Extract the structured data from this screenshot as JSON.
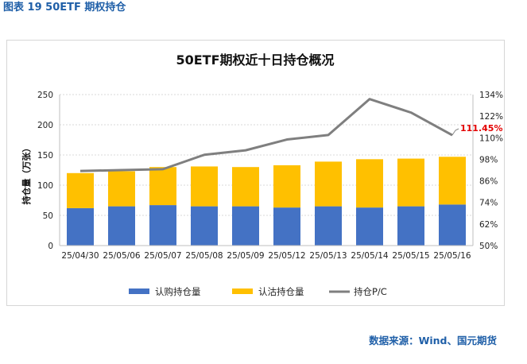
{
  "caption": "图表 19 50ETF 期权持仓",
  "source": "数据来源：Wind、国元期货",
  "colors": {
    "call": "#4472c4",
    "put": "#ffc000",
    "pc": "#7f7f7f",
    "annotation": "#e30000",
    "text_blue": "#1f5fa8"
  },
  "chart_data": {
    "type": "bar",
    "title": "50ETF期权近十日持仓概况",
    "ylabel": "持仓量（万张）",
    "y2label": "",
    "categories": [
      "25/04/30",
      "25/05/06",
      "25/05/07",
      "25/05/08",
      "25/05/09",
      "25/05/12",
      "25/05/13",
      "25/05/14",
      "25/05/15",
      "25/05/16"
    ],
    "ylim": [
      0,
      250
    ],
    "yticks": [
      0,
      50,
      100,
      150,
      200,
      250
    ],
    "y2lim": [
      50,
      134
    ],
    "y2ticks": [
      "50%",
      "62%",
      "74%",
      "86%",
      "98%",
      "110%",
      "122%",
      "134%"
    ],
    "stacked": true,
    "grid": true,
    "legend_position": "bottom",
    "series": [
      {
        "name": "认购持仓量",
        "type": "bar",
        "axis": "left",
        "color": "#4472c4",
        "values": [
          62,
          65,
          67,
          65,
          65,
          63,
          65,
          63,
          65,
          68
        ]
      },
      {
        "name": "认沽持仓量",
        "type": "bar",
        "axis": "left",
        "color": "#ffc000",
        "values": [
          58,
          58,
          63,
          66,
          65,
          70,
          74,
          80,
          79,
          79
        ]
      },
      {
        "name": "持仓P/C",
        "type": "line",
        "axis": "right",
        "color": "#7f7f7f",
        "values": [
          91.5,
          92.0,
          92.5,
          100.5,
          103.0,
          109.0,
          111.5,
          131.5,
          124.0,
          111.45
        ]
      }
    ],
    "annotations": [
      {
        "text": "111.45%",
        "series": 2,
        "index": 9
      }
    ]
  }
}
